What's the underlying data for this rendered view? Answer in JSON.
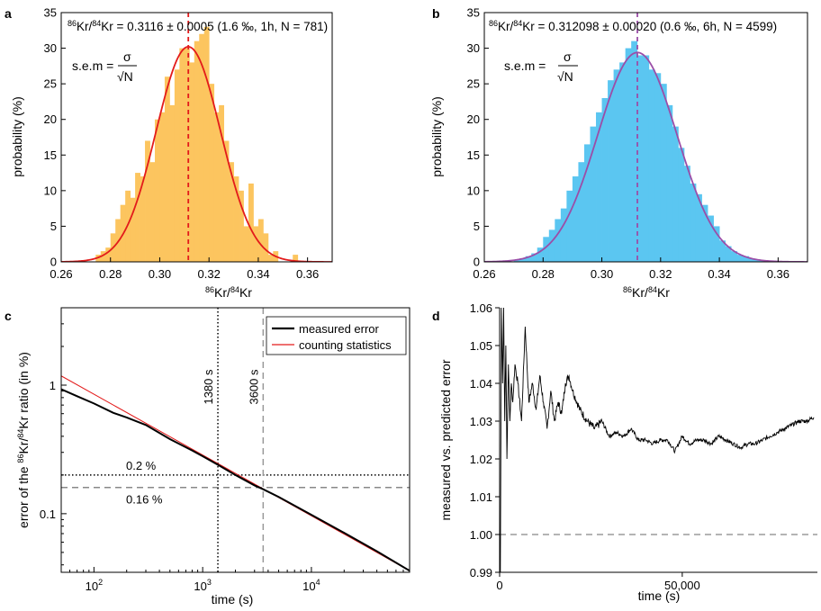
{
  "chart_data": [
    {
      "panel": "a",
      "type": "bar",
      "title": "86Kr/84Kr = 0.3116 ± 0.0005 (1.6 ‰, 1h, N = 781)",
      "formula": "s.e.m = σ/√N",
      "xlabel": "86Kr/84Kr",
      "ylabel": "probability (%)",
      "xlim": [
        0.26,
        0.37
      ],
      "ylim": [
        0,
        35
      ],
      "xticks": [
        "0.26",
        "0.28",
        "0.30",
        "0.32",
        "0.34",
        "0.36"
      ],
      "yticks": [
        "0",
        "5",
        "10",
        "15",
        "20",
        "25",
        "30",
        "35"
      ],
      "grid": false,
      "bin_width": 0.002,
      "bins_start": [
        0.274,
        0.276,
        0.278,
        0.28,
        0.282,
        0.284,
        0.286,
        0.288,
        0.29,
        0.292,
        0.294,
        0.296,
        0.298,
        0.3,
        0.302,
        0.304,
        0.306,
        0.308,
        0.31,
        0.312,
        0.314,
        0.316,
        0.318,
        0.32,
        0.322,
        0.324,
        0.326,
        0.328,
        0.33,
        0.332,
        0.334,
        0.336,
        0.338,
        0.34,
        0.342,
        0.344,
        0.346,
        0.354
      ],
      "values": [
        1,
        1.5,
        2,
        4,
        6,
        8,
        10,
        9,
        12.5,
        12,
        17,
        14,
        20,
        21,
        26,
        22,
        27,
        30,
        30,
        28,
        31,
        32,
        33,
        25,
        21,
        22,
        17,
        14,
        12,
        10,
        5,
        11,
        5,
        6,
        4,
        1,
        1.5,
        1
      ],
      "fit": {
        "type": "gaussian",
        "mean": 0.3116,
        "sigma": 0.0131,
        "peak": 30.2
      },
      "mean_line": 0.3116,
      "bar_color": "#fcc55f",
      "fit_color": "#e31b1b"
    },
    {
      "panel": "b",
      "type": "bar",
      "title": "86Kr/84Kr = 0.312098 ± 0.00020 (0.6 ‰, 6h, N = 4599)",
      "formula": "s.e.m = σ/√N",
      "xlabel": "86Kr/84Kr",
      "ylabel": "probability (%)",
      "xlim": [
        0.26,
        0.37
      ],
      "ylim": [
        0,
        35
      ],
      "xticks": [
        "0.26",
        "0.28",
        "0.30",
        "0.32",
        "0.34",
        "0.36"
      ],
      "yticks": [
        "0",
        "5",
        "10",
        "15",
        "20",
        "25",
        "30",
        "35"
      ],
      "grid": false,
      "bin_width": 0.002,
      "bins_start": [
        0.27,
        0.272,
        0.274,
        0.276,
        0.278,
        0.28,
        0.282,
        0.284,
        0.286,
        0.288,
        0.29,
        0.292,
        0.294,
        0.296,
        0.298,
        0.3,
        0.302,
        0.304,
        0.306,
        0.308,
        0.31,
        0.312,
        0.314,
        0.316,
        0.318,
        0.32,
        0.322,
        0.324,
        0.326,
        0.328,
        0.33,
        0.332,
        0.334,
        0.336,
        0.338,
        0.34,
        0.342,
        0.344,
        0.346,
        0.348,
        0.35,
        0.352,
        0.354
      ],
      "values": [
        0.3,
        0.5,
        0.8,
        1.2,
        2,
        3.5,
        4.5,
        6,
        7.5,
        10,
        12,
        14,
        16.5,
        19,
        21,
        23,
        25.5,
        27,
        28,
        30,
        31,
        29,
        29,
        27,
        26.5,
        25,
        22,
        19,
        16,
        13.5,
        11,
        9.5,
        8,
        6.5,
        5,
        3,
        2.2,
        1.5,
        1,
        0.8,
        0.5,
        0.3,
        0.2
      ],
      "fit": {
        "type": "gaussian",
        "mean": 0.312098,
        "sigma": 0.0135,
        "peak": 29.4
      },
      "mean_line": 0.312098,
      "bar_color": "#5bc6f1",
      "fit_color": "#9b4ea8"
    },
    {
      "panel": "c",
      "type": "line",
      "xlabel": "time (s)",
      "ylabel": "error of the 86Kr/84Kr ratio (in %)",
      "xscale": "log",
      "yscale": "log",
      "xlim": [
        50,
        80000
      ],
      "ylim": [
        0.035,
        4
      ],
      "xticks": [
        100,
        1000,
        10000
      ],
      "yticks": [
        0.1,
        1
      ],
      "legend": "top-right",
      "legend_entries": [
        "measured error",
        "counting statistics"
      ],
      "series": [
        {
          "name": "measured error",
          "color": "#000000",
          "x": [
            50,
            70,
            100,
            150,
            200,
            300,
            500,
            800,
            1000,
            1380,
            2000,
            3000,
            3600,
            5000,
            10000,
            20000,
            40000,
            80000
          ],
          "y": [
            0.93,
            0.82,
            0.72,
            0.61,
            0.56,
            0.49,
            0.38,
            0.31,
            0.28,
            0.24,
            0.2,
            0.166,
            0.155,
            0.135,
            0.098,
            0.071,
            0.051,
            0.036
          ]
        },
        {
          "name": "counting statistics",
          "color": "#e31b1b",
          "x": [
            50,
            80000
          ],
          "y": [
            1.18,
            0.036
          ]
        }
      ],
      "vlines": [
        {
          "x": 1380,
          "label": "1380 s",
          "style": "dotted"
        },
        {
          "x": 3600,
          "label": "3600 s",
          "style": "dashed"
        }
      ],
      "hlines": [
        {
          "y": 0.2,
          "label": "0.2 %",
          "style": "dotted"
        },
        {
          "y": 0.16,
          "label": "0.16 %",
          "style": "dashed"
        }
      ]
    },
    {
      "panel": "d",
      "type": "line",
      "xlabel": "time (s)",
      "ylabel": "measured vs. predicted error",
      "xlim": [
        0,
        87000
      ],
      "ylim": [
        0.99,
        1.06
      ],
      "xticks": [
        "0",
        "50,000"
      ],
      "yticks": [
        "0.99",
        "1.00",
        "1.01",
        "1.02",
        "1.03",
        "1.04",
        "1.05",
        "1.06"
      ],
      "reference_line": 1.0,
      "series": [
        {
          "color": "#000000",
          "x": [
            200,
            500,
            800,
            1100,
            1400,
            1700,
            2000,
            2400,
            2800,
            3200,
            3600,
            4200,
            5000,
            6000,
            7000,
            8000,
            9000,
            10000,
            11000,
            12000,
            13000,
            14000,
            15000,
            16000,
            17000,
            18000,
            19000,
            20000,
            22000,
            24000,
            26000,
            28000,
            30000,
            32000,
            34000,
            36000,
            38000,
            40000,
            42000,
            44000,
            46000,
            48000,
            50000,
            52000,
            54000,
            56000,
            58000,
            60000,
            62000,
            64000,
            66000,
            68000,
            70000,
            72000,
            74000,
            76000,
            78000,
            80000,
            82000,
            84000,
            86000
          ],
          "y": [
            0.99,
            1.06,
            1.04,
            1.06,
            1.03,
            1.05,
            1.02,
            1.045,
            1.03,
            1.04,
            1.035,
            1.045,
            1.04,
            1.03,
            1.055,
            1.035,
            1.04,
            1.033,
            1.042,
            1.035,
            1.028,
            1.038,
            1.03,
            1.035,
            1.032,
            1.04,
            1.042,
            1.038,
            1.033,
            1.03,
            1.028,
            1.03,
            1.026,
            1.027,
            1.026,
            1.028,
            1.025,
            1.025,
            1.024,
            1.025,
            1.025,
            1.022,
            1.026,
            1.024,
            1.025,
            1.025,
            1.024,
            1.026,
            1.025,
            1.024,
            1.023,
            1.024,
            1.024,
            1.025,
            1.026,
            1.027,
            1.028,
            1.029,
            1.03,
            1.03,
            1.031
          ]
        }
      ]
    }
  ]
}
